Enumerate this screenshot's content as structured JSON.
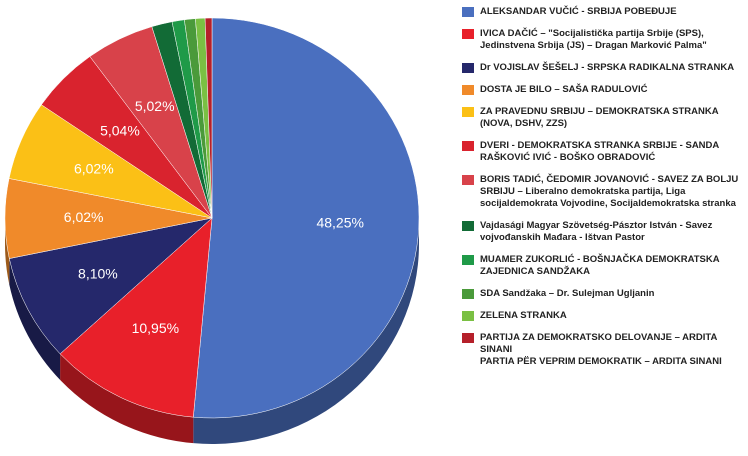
{
  "chart_data": {
    "type": "pie",
    "categories": [
      "ALEKSANDAR VUČIĆ - SRBIJA POBEĐUJE",
      "IVICA DAČIĆ – \"Socijalistička partija Srbije (SPS), Jedinstvena Srbija (JS) – Dragan Marković Palma\"",
      "Dr VOJISLAV ŠEŠELJ - SRPSKA RADIKALNA STRANKA",
      "DOSTA JE BILO – SAŠA RADULOVIĆ",
      "ZA PRAVEDNU SRBIJU – DEMOKRATSKA STRANKA (NOVA, DSHV, ZZS)",
      "DVERI - DEMOKRATSKA STRANKA SRBIJE - SANDA RAŠKOVIĆ IVIĆ - BOŠKO OBRADOVIĆ",
      "BORIS TADIĆ, ČEDOMIR JOVANOVIĆ - SAVEZ ZA BOLJU SRBIJU – Liberalno demokratska partija, Liga socijaldemokrata Vojvodine, Socijaldemokratska stranka",
      "Vajdasági Magyar Szövetség-Pásztor István - Savez vojvođanskih Mađara - Ištvan Pastor",
      "MUAMER ZUKORLIĆ - BOŠNJAČKA DEMOKRATSKA ZAJEDNICA SANDŽAKA",
      "SDA Sandžaka – Dr. Sulejman Ugljanin",
      "ZELENA STRANKA",
      "PARTIJA ZA DEMOKRATSKO DELOVANJE – ARDITA SINANI\nPARTIA PËR VEPRIM DEMOKRATIK – ARDITA SINANI"
    ],
    "values": [
      48.25,
      10.95,
      8.1,
      6.02,
      6.02,
      5.04,
      5.02,
      1.5,
      0.9,
      0.8,
      0.7,
      0.5
    ],
    "value_labels": [
      "48,25%",
      "10,95%",
      "8,10%",
      "6,02%",
      "6,02%",
      "5,04%",
      "5,02%",
      null,
      null,
      null,
      null,
      null
    ],
    "colors": [
      "#4a6fbf",
      "#e8202a",
      "#25286b",
      "#f08a2a",
      "#fbc016",
      "#d9232e",
      "#d8424a",
      "#126b36",
      "#1f9a48",
      "#4a9a3a",
      "#7ac043",
      "#b5202a"
    ],
    "legend": "right"
  }
}
